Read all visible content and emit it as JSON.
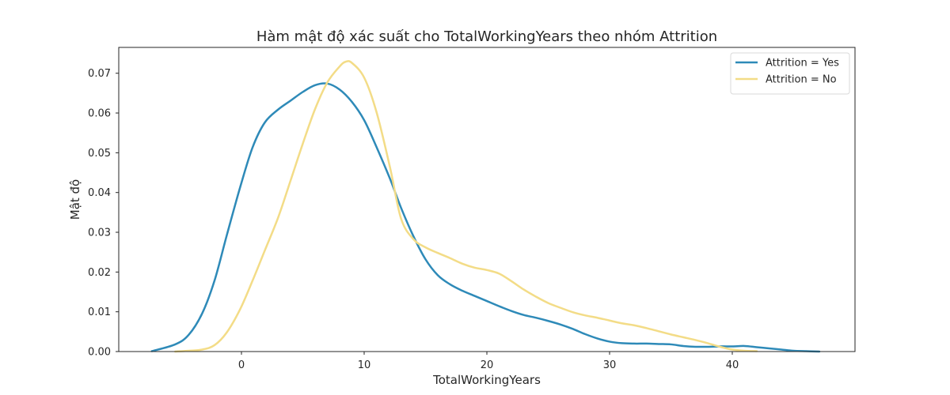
{
  "chart_data": {
    "type": "line",
    "title": "Hàm mật độ xác suất cho TotalWorkingYears theo nhóm Attrition",
    "xlabel": "TotalWorkingYears",
    "ylabel": "Mật độ",
    "xlim": [
      -10,
      50
    ],
    "ylim": [
      0,
      0.0765
    ],
    "xticks": [
      0,
      10,
      20,
      30,
      40
    ],
    "yticks": [
      0.0,
      0.01,
      0.02,
      0.03,
      0.04,
      0.05,
      0.06,
      0.07
    ],
    "xtick_labels": [
      "0",
      "10",
      "20",
      "30",
      "40"
    ],
    "ytick_labels": [
      "0.00",
      "0.01",
      "0.02",
      "0.03",
      "0.04",
      "0.05",
      "0.06",
      "0.07"
    ],
    "grid": false,
    "legend_position": "top-right",
    "series": [
      {
        "name": "Attrition = Yes",
        "color": "#2e8ab8",
        "x": [
          -7.3,
          -5.4,
          -4.3,
          -3.2,
          -2.2,
          -1.2,
          -0.1,
          0.9,
          1.9,
          3,
          4,
          5,
          6,
          7,
          8,
          9,
          10,
          11,
          12.1,
          13,
          14,
          15,
          16,
          17,
          18,
          19,
          20,
          21,
          22,
          23,
          24,
          25,
          26,
          27,
          28,
          29,
          30,
          31,
          32,
          33,
          34,
          35,
          36,
          37,
          38,
          39,
          40,
          41,
          42,
          43,
          44,
          45,
          46,
          47.1
        ],
        "values": [
          0.0001,
          0.0018,
          0.0042,
          0.0096,
          0.0178,
          0.0292,
          0.0414,
          0.0513,
          0.0576,
          0.0609,
          0.0631,
          0.0653,
          0.067,
          0.0674,
          0.0659,
          0.0628,
          0.0582,
          0.0515,
          0.0435,
          0.0362,
          0.0291,
          0.0232,
          0.0192,
          0.0169,
          0.0153,
          0.014,
          0.0127,
          0.0114,
          0.0102,
          0.0092,
          0.0085,
          0.0077,
          0.0068,
          0.0057,
          0.0044,
          0.0033,
          0.0025,
          0.0021,
          0.002,
          0.002,
          0.0019,
          0.0018,
          0.0014,
          0.0012,
          0.0012,
          0.0013,
          0.0013,
          0.0014,
          0.0011,
          0.0008,
          0.0005,
          0.0002,
          0.0001,
          0.0
        ]
      },
      {
        "name": "Attrition = No",
        "color": "#f3dc87",
        "x": [
          -5.4,
          -4.3,
          -3.2,
          -2.2,
          -1.2,
          -0.1,
          0.9,
          1.9,
          3,
          4,
          5,
          6,
          7,
          8,
          8.5,
          9,
          10,
          11,
          12.1,
          13,
          14,
          15,
          16,
          17,
          18,
          19,
          20,
          21,
          22,
          23,
          24,
          25,
          26,
          27,
          28,
          29,
          30,
          31,
          32,
          33,
          34,
          35,
          36,
          37,
          38,
          39,
          40,
          41,
          42
        ],
        "values": [
          0.0,
          0.0002,
          0.0005,
          0.0016,
          0.0048,
          0.0107,
          0.0178,
          0.0254,
          0.0338,
          0.043,
          0.0523,
          0.061,
          0.0677,
          0.0717,
          0.0729,
          0.0726,
          0.0689,
          0.0603,
          0.0464,
          0.0335,
          0.0283,
          0.0262,
          0.0248,
          0.0235,
          0.0221,
          0.0211,
          0.0205,
          0.0196,
          0.0177,
          0.0156,
          0.0138,
          0.0122,
          0.011,
          0.0099,
          0.0091,
          0.0085,
          0.0078,
          0.0071,
          0.0066,
          0.0059,
          0.0051,
          0.0043,
          0.0036,
          0.0029,
          0.0021,
          0.0012,
          0.0005,
          0.0002,
          0.0001
        ]
      }
    ]
  }
}
